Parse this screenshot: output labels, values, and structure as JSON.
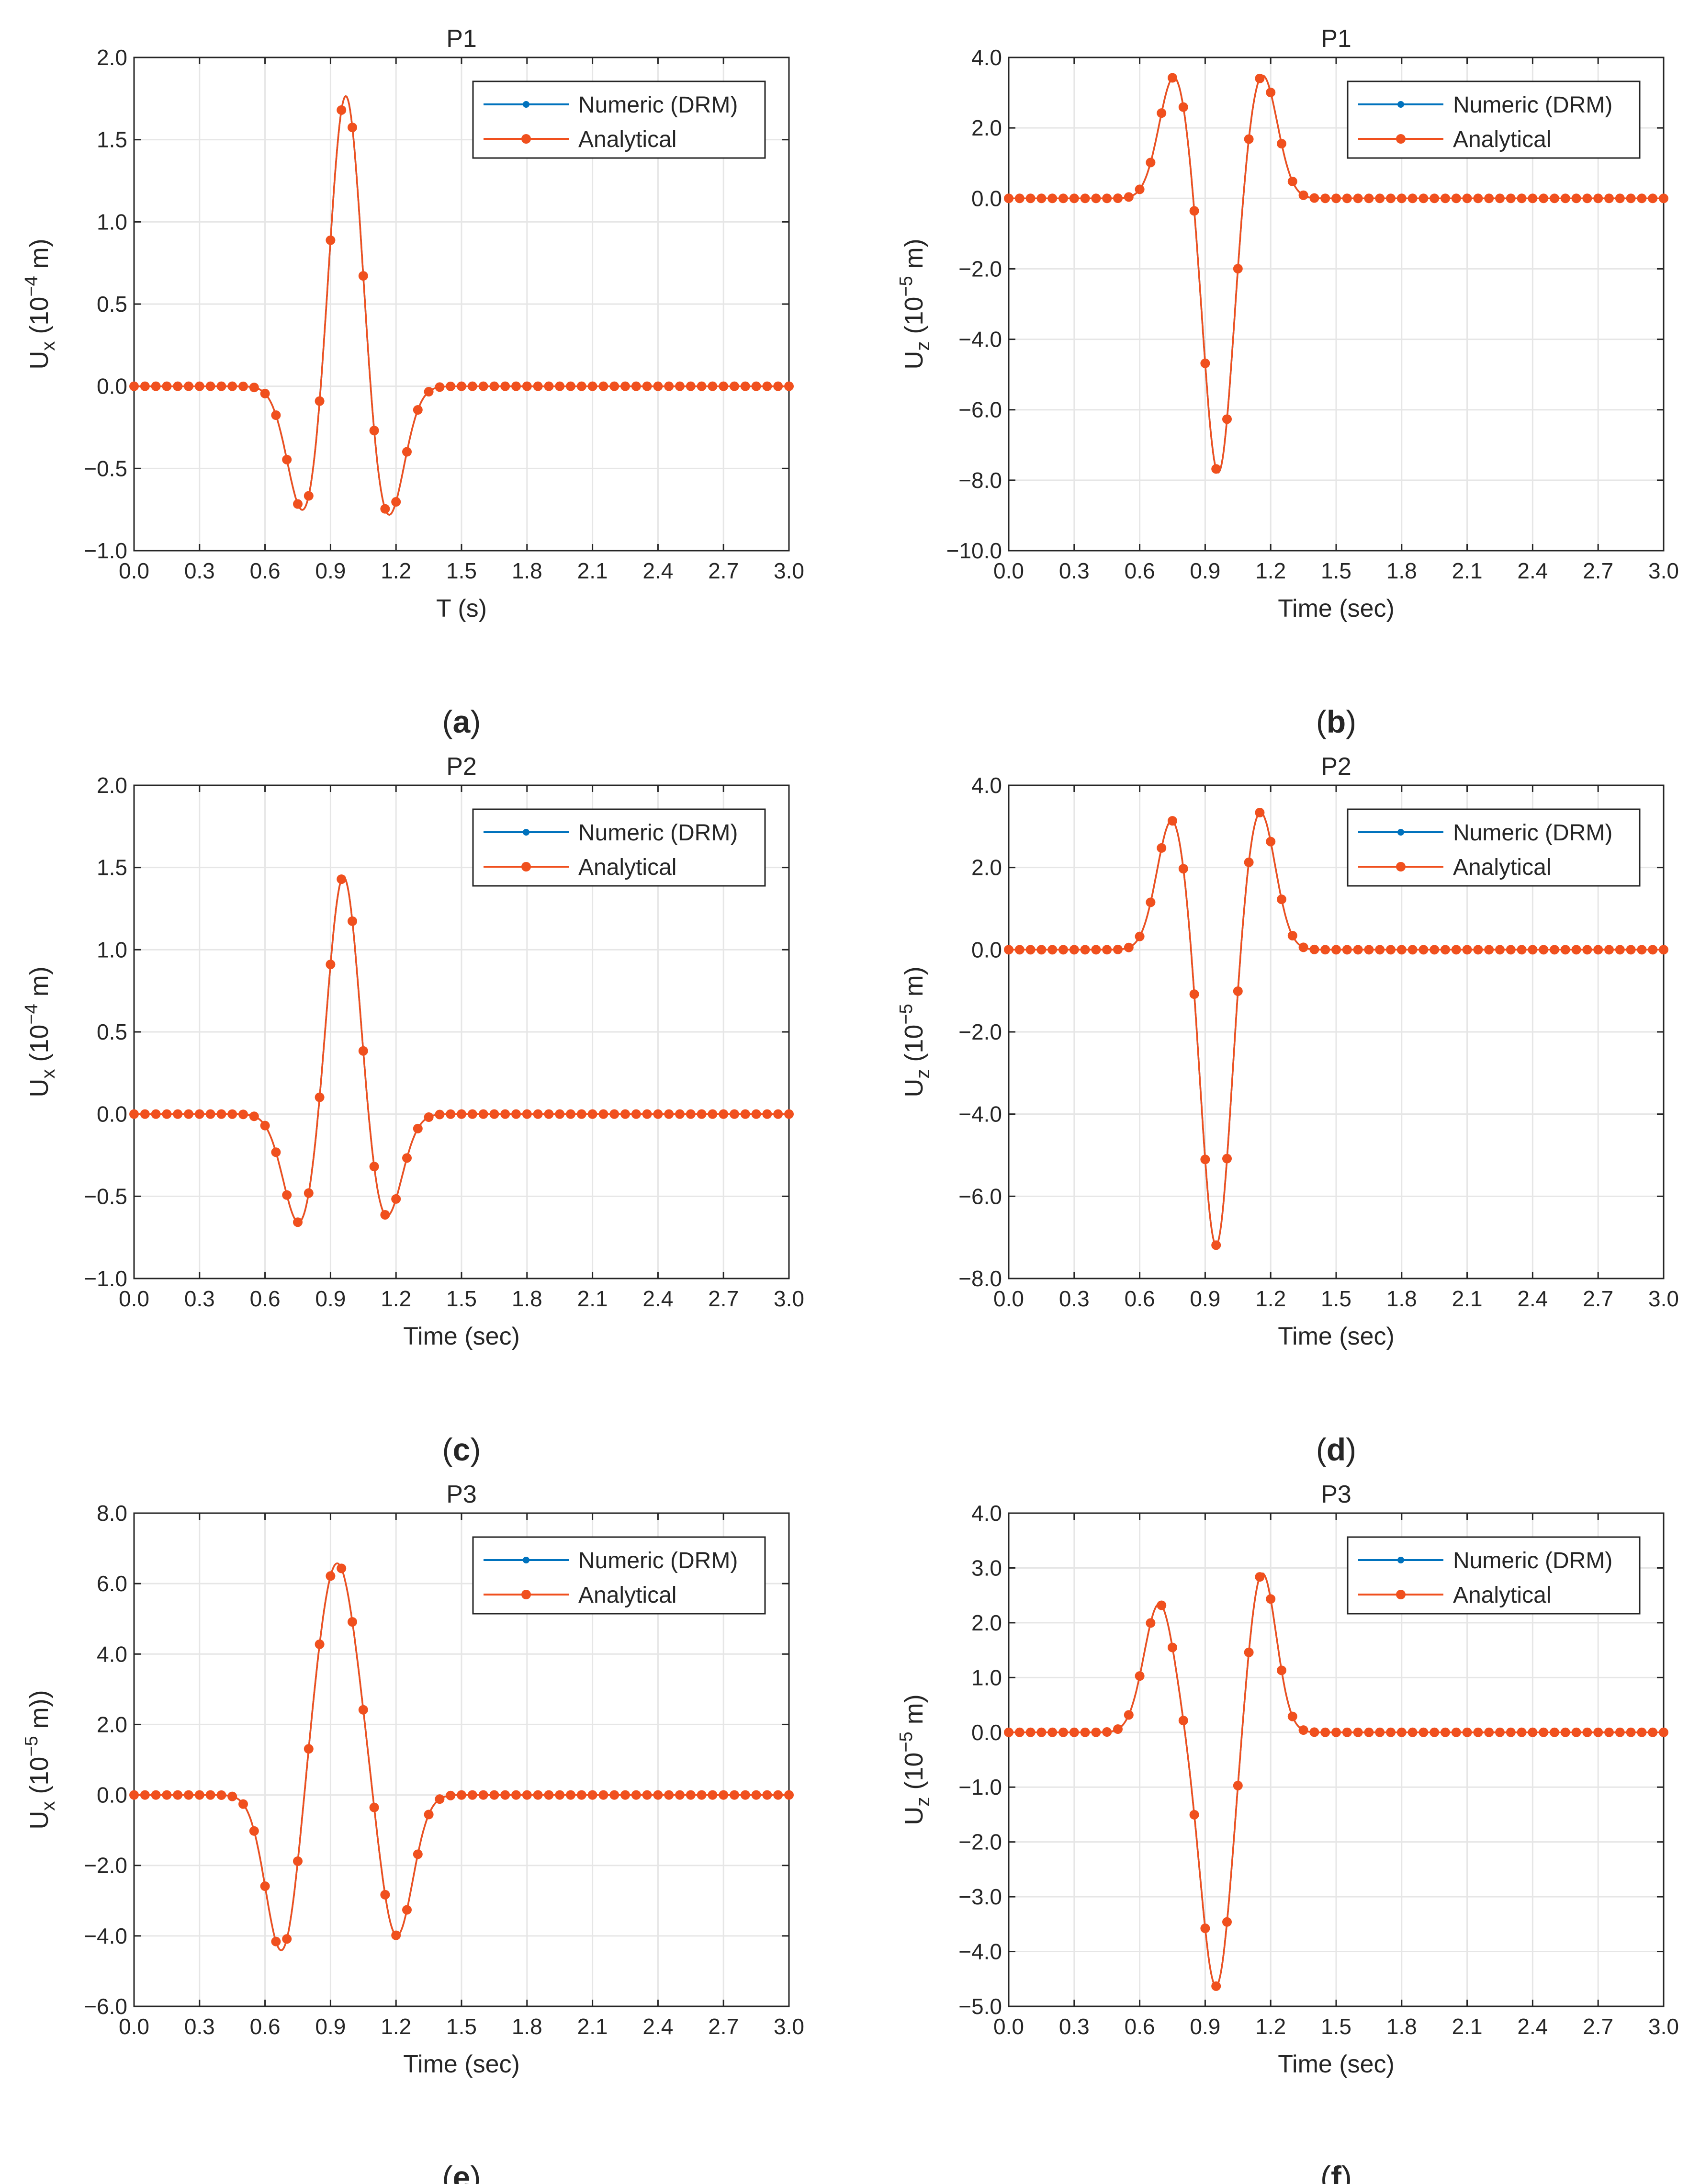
{
  "colors": {
    "numeric": "#0072BD",
    "analytical": "#F0501E",
    "grid": "#e6e6e6",
    "axis": "#262626"
  },
  "legend": {
    "entries": [
      "Numeric (DRM)",
      "Analytical"
    ]
  },
  "chart_data": [
    {
      "type": "line",
      "panel_label": "(a)",
      "title": "P1",
      "xlabel": "T (s)",
      "ylabel_main": "U",
      "ylabel_sub": "x",
      "ylabel_unit_pre": " (10",
      "ylabel_exp": "−4",
      "ylabel_unit_post": " m)",
      "xlim": [
        0,
        3
      ],
      "ylim": [
        -1,
        2
      ],
      "xticks": [
        "0.0",
        "0.3",
        "0.6",
        "0.9",
        "1.2",
        "1.5",
        "1.8",
        "2.1",
        "2.4",
        "2.7",
        "3.0"
      ],
      "yticks": [
        "−1.0",
        "−0.5",
        "0.0",
        "0.5",
        "1.0",
        "1.5",
        "2.0"
      ],
      "ytick_values": [
        -1,
        -0.5,
        0,
        0.5,
        1,
        1.5,
        2
      ],
      "series": [
        {
          "name": "Numeric (DRM)",
          "pulses": [
            {
              "t": 0.78,
              "a": -0.79,
              "w": 0.075
            },
            {
              "t": 0.97,
              "a": 1.83,
              "w": 0.07
            },
            {
              "t": 1.16,
              "a": -0.82,
              "w": 0.075
            }
          ]
        },
        {
          "name": "Analytical",
          "pulses": [
            {
              "t": 0.78,
              "a": -0.79,
              "w": 0.075
            },
            {
              "t": 0.97,
              "a": 1.83,
              "w": 0.07
            },
            {
              "t": 1.16,
              "a": -0.82,
              "w": 0.075
            }
          ]
        }
      ]
    },
    {
      "type": "line",
      "panel_label": "(b)",
      "title": "P1",
      "xlabel": "Time (sec)",
      "ylabel_main": "U",
      "ylabel_sub": "z",
      "ylabel_unit_pre": " (10",
      "ylabel_exp": "−5",
      "ylabel_unit_post": " m)",
      "xlim": [
        0,
        3
      ],
      "ylim": [
        -10,
        4
      ],
      "xticks": [
        "0.0",
        "0.3",
        "0.6",
        "0.9",
        "1.2",
        "1.5",
        "1.8",
        "2.1",
        "2.4",
        "2.7",
        "3.0"
      ],
      "yticks": [
        "−10.0",
        "−8.0",
        "−6.0",
        "−4.0",
        "−2.0",
        "0.0",
        "2.0",
        "4.0"
      ],
      "ytick_values": [
        -10,
        -8,
        -6,
        -4,
        -2,
        0,
        2,
        4
      ],
      "series": [
        {
          "name": "Numeric (DRM)",
          "pulses": [
            {
              "t": 0.76,
              "a": 3.5,
              "w": 0.07
            },
            {
              "t": 0.96,
              "a": -7.9,
              "w": 0.065
            },
            {
              "t": 1.16,
              "a": 3.55,
              "w": 0.07
            }
          ]
        },
        {
          "name": "Analytical",
          "pulses": [
            {
              "t": 0.76,
              "a": 3.5,
              "w": 0.07
            },
            {
              "t": 0.96,
              "a": -7.9,
              "w": 0.065
            },
            {
              "t": 1.16,
              "a": 3.55,
              "w": 0.07
            }
          ]
        }
      ]
    },
    {
      "type": "line",
      "panel_label": "(c)",
      "title": "P2",
      "xlabel": "Time (sec)",
      "ylabel_main": "U",
      "ylabel_sub": "x",
      "ylabel_unit_pre": " (10",
      "ylabel_exp": "−4",
      "ylabel_unit_post": " m)",
      "xlim": [
        0,
        3
      ],
      "ylim": [
        -1,
        2
      ],
      "xticks": [
        "0.0",
        "0.3",
        "0.6",
        "0.9",
        "1.2",
        "1.5",
        "1.8",
        "2.1",
        "2.4",
        "2.7",
        "3.0"
      ],
      "yticks": [
        "−1.0",
        "−0.5",
        "0.0",
        "0.5",
        "1.0",
        "1.5",
        "2.0"
      ],
      "ytick_values": [
        -1,
        -0.5,
        0,
        0.5,
        1,
        1.5,
        2
      ],
      "series": [
        {
          "name": "Numeric (DRM)",
          "pulses": [
            {
              "t": 0.76,
              "a": -0.68,
              "w": 0.075
            },
            {
              "t": 0.96,
              "a": 1.49,
              "w": 0.07
            },
            {
              "t": 1.15,
              "a": -0.65,
              "w": 0.075
            }
          ]
        },
        {
          "name": "Analytical",
          "pulses": [
            {
              "t": 0.76,
              "a": -0.68,
              "w": 0.075
            },
            {
              "t": 0.96,
              "a": 1.49,
              "w": 0.07
            },
            {
              "t": 1.15,
              "a": -0.65,
              "w": 0.075
            }
          ]
        }
      ]
    },
    {
      "type": "line",
      "panel_label": "(d)",
      "title": "P2",
      "xlabel": "Time (sec)",
      "ylabel_main": "U",
      "ylabel_sub": "z",
      "ylabel_unit_pre": " (10",
      "ylabel_exp": "−5",
      "ylabel_unit_post": " m)",
      "xlim": [
        0,
        3
      ],
      "ylim": [
        -8,
        4
      ],
      "xticks": [
        "0.0",
        "0.3",
        "0.6",
        "0.9",
        "1.2",
        "1.5",
        "1.8",
        "2.1",
        "2.4",
        "2.7",
        "3.0"
      ],
      "yticks": [
        "−8.0",
        "−6.0",
        "−4.0",
        "−2.0",
        "0.0",
        "2.0",
        "4.0"
      ],
      "ytick_values": [
        -8,
        -6,
        -4,
        -2,
        0,
        2,
        4
      ],
      "series": [
        {
          "name": "Numeric (DRM)",
          "pulses": [
            {
              "t": 0.75,
              "a": 3.2,
              "w": 0.07
            },
            {
              "t": 0.95,
              "a": -7.3,
              "w": 0.065
            },
            {
              "t": 1.15,
              "a": 3.4,
              "w": 0.07
            }
          ]
        },
        {
          "name": "Analytical",
          "pulses": [
            {
              "t": 0.75,
              "a": 3.2,
              "w": 0.07
            },
            {
              "t": 0.95,
              "a": -7.3,
              "w": 0.065
            },
            {
              "t": 1.15,
              "a": 3.4,
              "w": 0.07
            }
          ]
        }
      ]
    },
    {
      "type": "line",
      "panel_label": "(e)",
      "title": "P3",
      "xlabel": "Time (sec)",
      "ylabel_main": "U",
      "ylabel_sub": "x",
      "ylabel_unit_pre": " (10",
      "ylabel_exp": "−5",
      "ylabel_unit_post": " m))",
      "xlim": [
        0,
        3
      ],
      "ylim": [
        -6,
        8
      ],
      "xticks": [
        "0.0",
        "0.3",
        "0.6",
        "0.9",
        "1.2",
        "1.5",
        "1.8",
        "2.1",
        "2.4",
        "2.7",
        "3.0"
      ],
      "yticks": [
        "−6.0",
        "−4.0",
        "−2.0",
        "0.0",
        "2.0",
        "4.0",
        "6.0",
        "8.0"
      ],
      "ytick_values": [
        -6,
        -4,
        -2,
        0,
        2,
        4,
        6,
        8
      ],
      "series": [
        {
          "name": "Numeric (DRM)",
          "pulses": [
            {
              "t": 0.68,
              "a": -4.6,
              "w": 0.075
            },
            {
              "t": 0.93,
              "a": 6.6,
              "w": 0.095
            },
            {
              "t": 1.2,
              "a": -4.1,
              "w": 0.075
            }
          ]
        },
        {
          "name": "Analytical",
          "pulses": [
            {
              "t": 0.68,
              "a": -4.6,
              "w": 0.075
            },
            {
              "t": 0.93,
              "a": 6.6,
              "w": 0.095
            },
            {
              "t": 1.2,
              "a": -4.1,
              "w": 0.075
            }
          ]
        }
      ]
    },
    {
      "type": "line",
      "panel_label": "(f)",
      "title": "P3",
      "xlabel": "Time (sec)",
      "ylabel_main": "U",
      "ylabel_sub": "z",
      "ylabel_unit_pre": " (10",
      "ylabel_exp": "−5",
      "ylabel_unit_post": " m)",
      "xlim": [
        0,
        3
      ],
      "ylim": [
        -5,
        4
      ],
      "xticks": [
        "0.0",
        "0.3",
        "0.6",
        "0.9",
        "1.2",
        "1.5",
        "1.8",
        "2.1",
        "2.4",
        "2.7",
        "3.0"
      ],
      "yticks": [
        "−5.0",
        "−4.0",
        "−3.0",
        "−2.0",
        "−1.0",
        "0.0",
        "1.0",
        "2.0",
        "3.0",
        "4.0"
      ],
      "ytick_values": [
        -5,
        -4,
        -3,
        -2,
        -1,
        0,
        1,
        2,
        3,
        4
      ],
      "series": [
        {
          "name": "Numeric (DRM)",
          "pulses": [
            {
              "t": 0.69,
              "a": 2.35,
              "w": 0.07
            },
            {
              "t": 0.95,
              "a": -4.65,
              "w": 0.07
            },
            {
              "t": 1.16,
              "a": 2.95,
              "w": 0.065
            }
          ]
        },
        {
          "name": "Analytical",
          "pulses": [
            {
              "t": 0.69,
              "a": 2.35,
              "w": 0.07
            },
            {
              "t": 0.95,
              "a": -4.65,
              "w": 0.07
            },
            {
              "t": 1.16,
              "a": 2.95,
              "w": 0.065
            }
          ]
        }
      ]
    }
  ]
}
